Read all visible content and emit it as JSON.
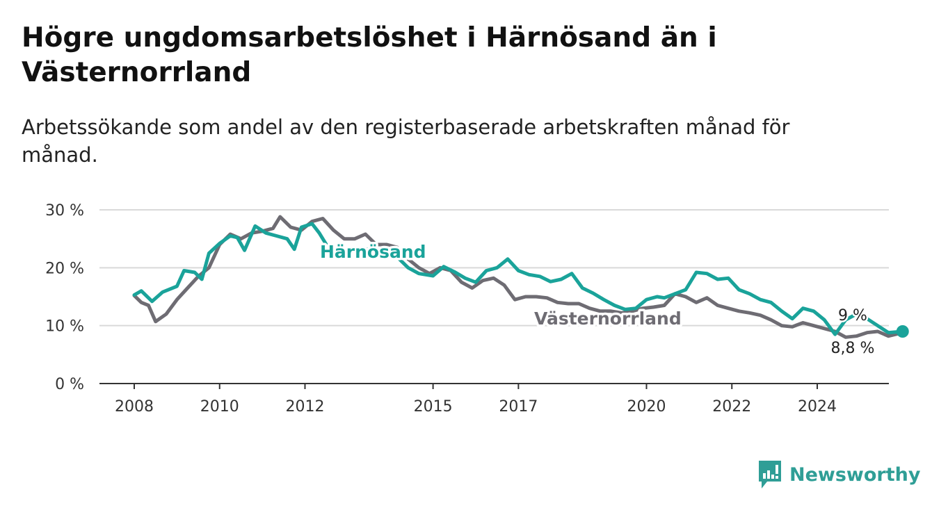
{
  "header": {
    "title": "Högre ungdomsarbetslöshet i Härnösand än i Västernorrland",
    "subtitle": "Arbetssökande som andel av den registerbaserade arbetskraften månad för månad."
  },
  "brand": {
    "name": "Newsworthy",
    "icon": "bar-chart-exclamation-icon"
  },
  "colors": {
    "harnosand": "#1aa39a",
    "vasternorrland": "#6e6c73",
    "grid": "#d9d9d9",
    "axis": "#333333"
  },
  "chart_data": {
    "type": "line",
    "title": "Högre ungdomsarbetslöshet i Härnösand än i Västernorrland",
    "subtitle": "Arbetssökande som andel av den registerbaserade arbetskraften månad för månad.",
    "x_ticks": [
      "2008",
      "2010",
      "2012",
      "2015",
      "2017",
      "2020",
      "2022",
      "2024"
    ],
    "y_ticks": [
      "0 %",
      "10 %",
      "20 %",
      "30 %"
    ],
    "ylim": [
      0,
      30
    ],
    "grid": true,
    "legend": "direct labels on lines",
    "end_labels": {
      "harnosand": "9 %",
      "vasternorrland": "8,8 %"
    },
    "series": [
      {
        "key": "harnosand",
        "name": "Härnösand",
        "points": [
          [
            "2008-01",
            15.3
          ],
          [
            "2008-03",
            16.0
          ],
          [
            "2008-06",
            14.2
          ],
          [
            "2008-09",
            15.8
          ],
          [
            "2009-01",
            16.8
          ],
          [
            "2009-03",
            19.5
          ],
          [
            "2009-06",
            19.2
          ],
          [
            "2009-08",
            18.0
          ],
          [
            "2009-10",
            22.5
          ],
          [
            "2010-01",
            24.2
          ],
          [
            "2010-04",
            25.5
          ],
          [
            "2010-06",
            25.2
          ],
          [
            "2010-08",
            23.0
          ],
          [
            "2010-11",
            27.2
          ],
          [
            "2011-02",
            26.0
          ],
          [
            "2011-05",
            25.5
          ],
          [
            "2011-08",
            25.0
          ],
          [
            "2011-10",
            23.2
          ],
          [
            "2011-12",
            27.0
          ],
          [
            "2012-03",
            27.6
          ],
          [
            "2012-05",
            26.0
          ],
          [
            "2012-07",
            24.0
          ],
          [
            "2012-09",
            22.5
          ],
          [
            "2013-01",
            23.0
          ],
          [
            "2013-06",
            23.2
          ],
          [
            "2014-01",
            23.0
          ],
          [
            "2014-06",
            20.0
          ],
          [
            "2014-09",
            19.0
          ],
          [
            "2015-01",
            18.6
          ],
          [
            "2015-04",
            20.2
          ],
          [
            "2015-07",
            19.3
          ],
          [
            "2015-10",
            18.2
          ],
          [
            "2016-01",
            17.5
          ],
          [
            "2016-04",
            19.5
          ],
          [
            "2016-07",
            20.0
          ],
          [
            "2016-10",
            21.5
          ],
          [
            "2017-01",
            19.5
          ],
          [
            "2017-04",
            18.8
          ],
          [
            "2017-07",
            18.5
          ],
          [
            "2017-10",
            17.6
          ],
          [
            "2018-01",
            18.0
          ],
          [
            "2018-04",
            19.0
          ],
          [
            "2018-07",
            16.5
          ],
          [
            "2018-10",
            15.6
          ],
          [
            "2019-01",
            14.5
          ],
          [
            "2019-04",
            13.5
          ],
          [
            "2019-07",
            12.8
          ],
          [
            "2019-10",
            13.0
          ],
          [
            "2020-01",
            14.5
          ],
          [
            "2020-04",
            15.0
          ],
          [
            "2020-06",
            14.8
          ],
          [
            "2020-09",
            15.5
          ],
          [
            "2020-12",
            16.2
          ],
          [
            "2021-03",
            19.2
          ],
          [
            "2021-06",
            19.0
          ],
          [
            "2021-09",
            18.0
          ],
          [
            "2021-12",
            18.2
          ],
          [
            "2022-03",
            16.2
          ],
          [
            "2022-06",
            15.5
          ],
          [
            "2022-09",
            14.5
          ],
          [
            "2022-12",
            14.0
          ],
          [
            "2023-03",
            12.5
          ],
          [
            "2023-06",
            11.2
          ],
          [
            "2023-09",
            13.0
          ],
          [
            "2023-12",
            12.5
          ],
          [
            "2024-03",
            11.0
          ],
          [
            "2024-06",
            8.5
          ],
          [
            "2024-09",
            11.0
          ],
          [
            "2024-12",
            12.0
          ],
          [
            "2025-03",
            11.2
          ],
          [
            "2025-06",
            10.0
          ],
          [
            "2025-09",
            8.8
          ],
          [
            "2026-01",
            9.0
          ]
        ]
      },
      {
        "key": "vasternorrland",
        "name": "Västernorrland",
        "points": [
          [
            "2008-01",
            15.2
          ],
          [
            "2008-03",
            14.0
          ],
          [
            "2008-05",
            13.5
          ],
          [
            "2008-07",
            10.7
          ],
          [
            "2008-10",
            12.0
          ],
          [
            "2009-01",
            14.5
          ],
          [
            "2009-04",
            16.5
          ],
          [
            "2009-07",
            18.5
          ],
          [
            "2009-10",
            20.0
          ],
          [
            "2010-01",
            24.0
          ],
          [
            "2010-04",
            25.8
          ],
          [
            "2010-07",
            25.0
          ],
          [
            "2010-10",
            26.0
          ],
          [
            "2011-01",
            26.3
          ],
          [
            "2011-04",
            26.8
          ],
          [
            "2011-06",
            28.8
          ],
          [
            "2011-09",
            27.0
          ],
          [
            "2011-12",
            26.5
          ],
          [
            "2012-03",
            28.0
          ],
          [
            "2012-06",
            28.5
          ],
          [
            "2012-09",
            26.5
          ],
          [
            "2012-12",
            25.0
          ],
          [
            "2013-03",
            25.0
          ],
          [
            "2013-06",
            25.8
          ],
          [
            "2013-09",
            24.0
          ],
          [
            "2013-12",
            24.0
          ],
          [
            "2014-03",
            23.5
          ],
          [
            "2014-06",
            21.5
          ],
          [
            "2014-09",
            20.0
          ],
          [
            "2014-12",
            19.0
          ],
          [
            "2015-03",
            20.0
          ],
          [
            "2015-06",
            19.5
          ],
          [
            "2015-09",
            17.5
          ],
          [
            "2015-12",
            16.5
          ],
          [
            "2016-03",
            17.8
          ],
          [
            "2016-06",
            18.2
          ],
          [
            "2016-09",
            17.0
          ],
          [
            "2016-12",
            14.5
          ],
          [
            "2017-03",
            15.0
          ],
          [
            "2017-06",
            15.0
          ],
          [
            "2017-09",
            14.8
          ],
          [
            "2017-12",
            14.0
          ],
          [
            "2018-03",
            13.8
          ],
          [
            "2018-06",
            13.8
          ],
          [
            "2018-09",
            13.0
          ],
          [
            "2018-12",
            12.5
          ],
          [
            "2019-03",
            12.5
          ],
          [
            "2019-06",
            12.2
          ],
          [
            "2019-09",
            12.5
          ],
          [
            "2019-12",
            13.0
          ],
          [
            "2020-03",
            13.2
          ],
          [
            "2020-06",
            13.5
          ],
          [
            "2020-09",
            15.5
          ],
          [
            "2020-12",
            15.0
          ],
          [
            "2021-03",
            14.0
          ],
          [
            "2021-06",
            14.8
          ],
          [
            "2021-09",
            13.5
          ],
          [
            "2021-12",
            13.0
          ],
          [
            "2022-03",
            12.5
          ],
          [
            "2022-06",
            12.2
          ],
          [
            "2022-09",
            11.8
          ],
          [
            "2022-12",
            11.0
          ],
          [
            "2023-03",
            10.0
          ],
          [
            "2023-06",
            9.8
          ],
          [
            "2023-09",
            10.5
          ],
          [
            "2023-12",
            10.0
          ],
          [
            "2024-03",
            9.5
          ],
          [
            "2024-06",
            9.0
          ],
          [
            "2024-09",
            8.0
          ],
          [
            "2024-12",
            8.2
          ],
          [
            "2025-03",
            8.8
          ],
          [
            "2025-06",
            9.0
          ],
          [
            "2025-09",
            8.2
          ],
          [
            "2026-01",
            8.8
          ]
        ]
      }
    ]
  }
}
